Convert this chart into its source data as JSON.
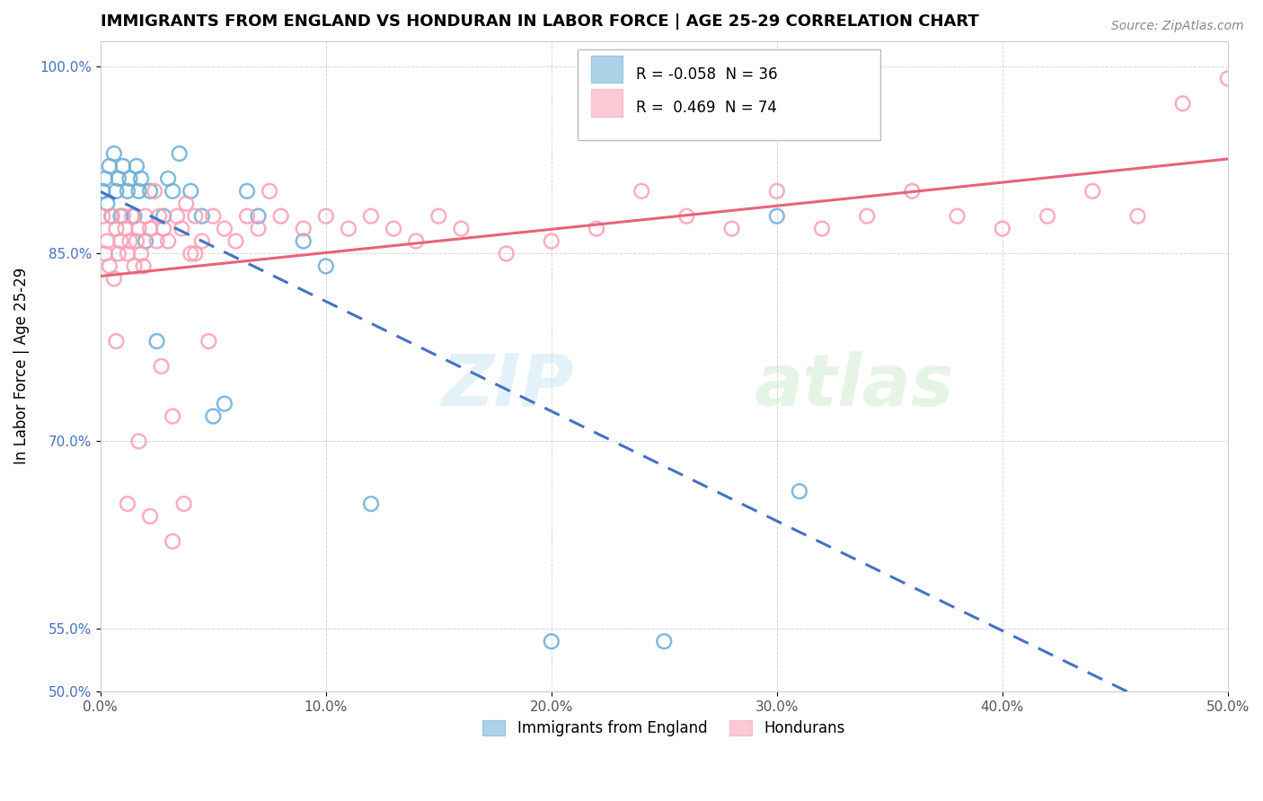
{
  "title": "IMMIGRANTS FROM ENGLAND VS HONDURAN IN LABOR FORCE | AGE 25-29 CORRELATION CHART",
  "source": "Source: ZipAtlas.com",
  "ylabel": "In Labor Force | Age 25-29",
  "xlim": [
    0.0,
    0.5
  ],
  "ylim": [
    0.5,
    1.02
  ],
  "xtick_labels": [
    "0.0%",
    "10.0%",
    "20.0%",
    "30.0%",
    "40.0%",
    "50.0%"
  ],
  "xticks": [
    0.0,
    0.1,
    0.2,
    0.3,
    0.4,
    0.5
  ],
  "yticks": [
    0.5,
    0.55,
    0.7,
    0.85,
    1.0
  ],
  "ytick_labels": [
    "50.0%",
    "55.0%",
    "70.0%",
    "85.0%",
    "100.0%"
  ],
  "watermark_zip": "ZIP",
  "watermark_atlas": "atlas",
  "england_color": "#6baed6",
  "honduras_color": "#fa9fb5",
  "england_R": -0.058,
  "england_N": 36,
  "honduras_R": 0.469,
  "honduras_N": 74,
  "legend_label_england": "Immigrants from England",
  "legend_label_honduras": "Hondurans",
  "england_x": [
    0.001,
    0.002,
    0.003,
    0.004,
    0.005,
    0.006,
    0.007,
    0.008,
    0.009,
    0.01,
    0.012,
    0.013,
    0.015,
    0.016,
    0.017,
    0.018,
    0.02,
    0.022,
    0.025,
    0.028,
    0.03,
    0.032,
    0.035,
    0.04,
    0.045,
    0.05,
    0.055,
    0.065,
    0.07,
    0.09,
    0.1,
    0.12,
    0.2,
    0.25,
    0.3,
    0.31
  ],
  "england_y": [
    0.9,
    0.91,
    0.89,
    0.92,
    0.88,
    0.93,
    0.9,
    0.91,
    0.88,
    0.92,
    0.9,
    0.91,
    0.88,
    0.92,
    0.9,
    0.91,
    0.86,
    0.9,
    0.78,
    0.88,
    0.91,
    0.9,
    0.93,
    0.9,
    0.88,
    0.72,
    0.73,
    0.9,
    0.88,
    0.86,
    0.84,
    0.65,
    0.54,
    0.54,
    0.88,
    0.66
  ],
  "honduras_x": [
    0.001,
    0.002,
    0.003,
    0.004,
    0.005,
    0.006,
    0.007,
    0.008,
    0.009,
    0.01,
    0.011,
    0.012,
    0.013,
    0.014,
    0.015,
    0.016,
    0.017,
    0.018,
    0.019,
    0.02,
    0.022,
    0.024,
    0.025,
    0.026,
    0.028,
    0.03,
    0.032,
    0.034,
    0.036,
    0.038,
    0.04,
    0.042,
    0.045,
    0.048,
    0.05,
    0.055,
    0.06,
    0.065,
    0.07,
    0.075,
    0.08,
    0.09,
    0.1,
    0.11,
    0.12,
    0.13,
    0.14,
    0.15,
    0.16,
    0.18,
    0.2,
    0.22,
    0.24,
    0.26,
    0.28,
    0.3,
    0.32,
    0.34,
    0.36,
    0.38,
    0.4,
    0.42,
    0.44,
    0.46,
    0.48,
    0.5,
    0.007,
    0.012,
    0.017,
    0.022,
    0.027,
    0.032,
    0.037,
    0.042
  ],
  "honduras_y": [
    0.88,
    0.85,
    0.86,
    0.84,
    0.88,
    0.83,
    0.87,
    0.85,
    0.86,
    0.88,
    0.87,
    0.85,
    0.86,
    0.88,
    0.84,
    0.86,
    0.87,
    0.85,
    0.84,
    0.88,
    0.87,
    0.9,
    0.86,
    0.88,
    0.87,
    0.86,
    0.72,
    0.88,
    0.87,
    0.89,
    0.85,
    0.88,
    0.86,
    0.78,
    0.88,
    0.87,
    0.86,
    0.88,
    0.87,
    0.9,
    0.88,
    0.87,
    0.88,
    0.87,
    0.88,
    0.87,
    0.86,
    0.88,
    0.87,
    0.85,
    0.86,
    0.87,
    0.9,
    0.88,
    0.87,
    0.9,
    0.87,
    0.88,
    0.9,
    0.88,
    0.87,
    0.88,
    0.9,
    0.88,
    0.97,
    0.99,
    0.78,
    0.65,
    0.7,
    0.64,
    0.76,
    0.62,
    0.65,
    0.85
  ]
}
